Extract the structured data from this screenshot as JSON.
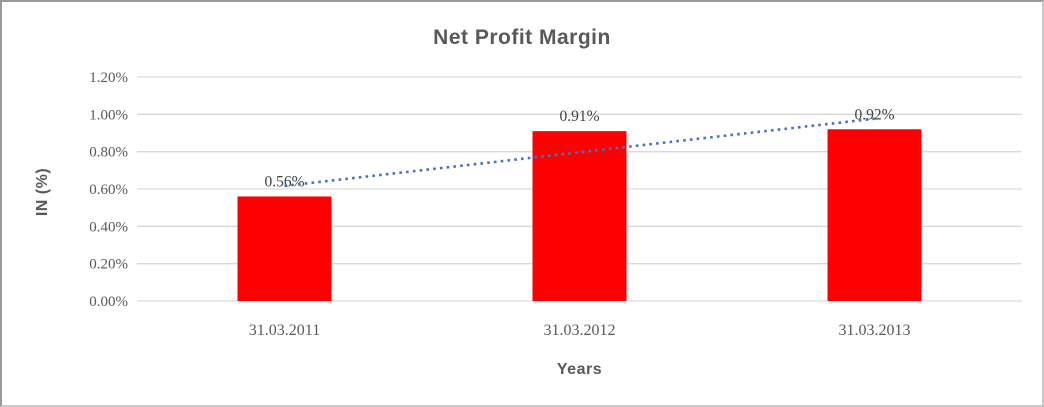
{
  "chart_data": {
    "type": "bar",
    "title": "Net Profit Margin",
    "categories": [
      "31.03.2011",
      "31.03.2012",
      "31.03.2013"
    ],
    "values": [
      0.56,
      0.91,
      0.92
    ],
    "data_labels": [
      "0.56%",
      "0.91%",
      "0.92%"
    ],
    "xlabel": "Years",
    "ylabel": "IN (%)",
    "ylim": [
      0,
      1.2
    ],
    "ytick_step": 0.2,
    "ytick_labels": [
      "0.00%",
      "0.20%",
      "0.40%",
      "0.60%",
      "0.80%",
      "1.00%",
      "1.20%"
    ],
    "grid": true,
    "legend": "none",
    "trendline": {
      "type": "linear",
      "style": "dotted"
    },
    "colors": {
      "bar": "#ff0000",
      "trendline": "#4472c4",
      "gridline": "#d9d9d9",
      "axis_text": "#595959",
      "data_label_text": "#3f3f3f",
      "title_text": "#595959",
      "frame_border": "#9a9a9a",
      "background": "#ffffff"
    }
  }
}
